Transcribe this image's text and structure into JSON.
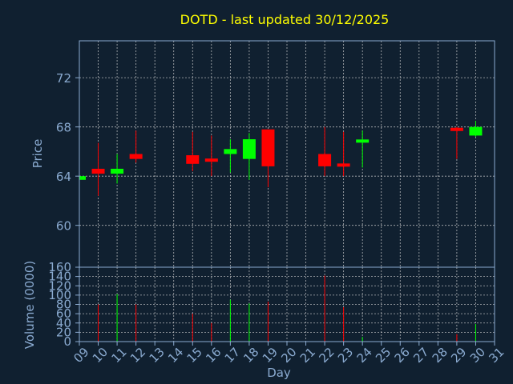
{
  "colors": {
    "background": "#102030",
    "text": "#8aaad0",
    "title": "#ffff00",
    "grid": "#d8d8d8",
    "axis": "#8aaad0",
    "up": "#00ff00",
    "down": "#ff0000"
  },
  "chart_data": [
    {
      "type": "candlestick",
      "title": "DOTD - last updated 30/12/2025",
      "ylabel": "Price",
      "ylim": [
        56.6,
        75
      ],
      "yticks": [
        60,
        64,
        68,
        72
      ],
      "xlim": [
        9,
        31
      ],
      "grid": true,
      "candles": [
        {
          "day": 9,
          "open": 63.7,
          "high": 64.0,
          "low": 63.6,
          "close": 64.0
        },
        {
          "day": 10,
          "open": 64.6,
          "high": 66.7,
          "low": 62.4,
          "close": 64.2
        },
        {
          "day": 11,
          "open": 64.2,
          "high": 65.8,
          "low": 63.4,
          "close": 64.6
        },
        {
          "day": 12,
          "open": 65.8,
          "high": 67.7,
          "low": 65.1,
          "close": 65.4
        },
        {
          "day": 15,
          "open": 65.7,
          "high": 67.6,
          "low": 64.4,
          "close": 65.0
        },
        {
          "day": 16,
          "open": 65.4,
          "high": 67.3,
          "low": 64.0,
          "close": 65.2
        },
        {
          "day": 17,
          "open": 65.8,
          "high": 67.0,
          "low": 64.3,
          "close": 66.2
        },
        {
          "day": 18,
          "open": 65.4,
          "high": 67.5,
          "low": 63.7,
          "close": 67.0
        },
        {
          "day": 19,
          "open": 67.8,
          "high": 67.8,
          "low": 63.1,
          "close": 64.8
        },
        {
          "day": 22,
          "open": 65.8,
          "high": 68.0,
          "low": 64.0,
          "close": 64.8
        },
        {
          "day": 23,
          "open": 65.0,
          "high": 67.6,
          "low": 64.0,
          "close": 64.8
        },
        {
          "day": 24,
          "open": 66.8,
          "high": 67.7,
          "low": 64.7,
          "close": 66.9
        },
        {
          "day": 29,
          "open": 67.9,
          "high": 68.0,
          "low": 65.4,
          "close": 67.7
        },
        {
          "day": 30,
          "open": 67.3,
          "high": 68.5,
          "low": 67.2,
          "close": 68.0
        }
      ]
    },
    {
      "type": "bar",
      "ylabel": "Volume (0000)",
      "xlabel": "Day",
      "ylim": [
        0,
        160
      ],
      "yticks": [
        0,
        20,
        40,
        60,
        80,
        100,
        120,
        140,
        160
      ],
      "xlim": [
        9,
        31
      ],
      "xticks": [
        "09",
        "10",
        "11",
        "12",
        "13",
        "14",
        "15",
        "16",
        "17",
        "18",
        "19",
        "20",
        "21",
        "22",
        "23",
        "24",
        "25",
        "26",
        "27",
        "28",
        "29",
        "30",
        "31"
      ],
      "grid": true,
      "bars": [
        {
          "day": 10,
          "value": 80,
          "dir": "down"
        },
        {
          "day": 11,
          "value": 102,
          "dir": "up"
        },
        {
          "day": 12,
          "value": 80,
          "dir": "down"
        },
        {
          "day": 15,
          "value": 60,
          "dir": "down"
        },
        {
          "day": 16,
          "value": 40,
          "dir": "down"
        },
        {
          "day": 17,
          "value": 90,
          "dir": "up"
        },
        {
          "day": 18,
          "value": 82,
          "dir": "up"
        },
        {
          "day": 19,
          "value": 86,
          "dir": "down"
        },
        {
          "day": 22,
          "value": 142,
          "dir": "down"
        },
        {
          "day": 23,
          "value": 74,
          "dir": "down"
        },
        {
          "day": 24,
          "value": 10,
          "dir": "up"
        },
        {
          "day": 29,
          "value": 16,
          "dir": "down"
        },
        {
          "day": 30,
          "value": 38,
          "dir": "up"
        }
      ]
    }
  ]
}
